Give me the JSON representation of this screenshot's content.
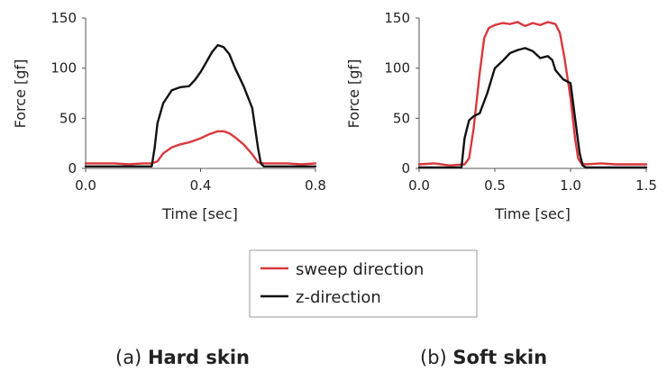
{
  "chart_data": [
    {
      "type": "line",
      "caption_prefix": "(a) ",
      "caption_bold": "Hard skin",
      "xlabel": "Time [sec]",
      "ylabel": "Force [gf]",
      "xlim": [
        0,
        0.8
      ],
      "ylim": [
        0,
        150
      ],
      "xticks": [
        0,
        0.4,
        0.8
      ],
      "yticks": [
        0,
        50,
        100,
        150
      ],
      "grid": false,
      "series": [
        {
          "name": "sweep direction",
          "color": "#d9383e",
          "x": [
            0,
            0.05,
            0.1,
            0.15,
            0.2,
            0.23,
            0.25,
            0.27,
            0.3,
            0.33,
            0.36,
            0.4,
            0.43,
            0.46,
            0.48,
            0.5,
            0.52,
            0.55,
            0.58,
            0.6,
            0.62,
            0.65,
            0.7,
            0.75,
            0.8
          ],
          "y": [
            5,
            5,
            5,
            4,
            5,
            5,
            7,
            15,
            21,
            24,
            26,
            30,
            34,
            37,
            37,
            35,
            31,
            24,
            14,
            6,
            5,
            5,
            5,
            4,
            5
          ]
        },
        {
          "name": "z-direction",
          "color": "#111111",
          "x": [
            0,
            0.05,
            0.1,
            0.15,
            0.2,
            0.23,
            0.24,
            0.25,
            0.27,
            0.3,
            0.33,
            0.36,
            0.38,
            0.4,
            0.42,
            0.44,
            0.46,
            0.48,
            0.5,
            0.52,
            0.55,
            0.58,
            0.6,
            0.61,
            0.62,
            0.65,
            0.7,
            0.75,
            0.8
          ],
          "y": [
            2,
            2,
            2,
            2,
            2,
            2,
            20,
            45,
            65,
            78,
            81,
            82,
            88,
            96,
            106,
            116,
            123,
            121,
            114,
            100,
            82,
            60,
            20,
            5,
            2,
            2,
            2,
            2,
            2
          ]
        }
      ]
    },
    {
      "type": "line",
      "caption_prefix": "(b) ",
      "caption_bold": "Soft skin",
      "xlabel": "Time [sec]",
      "ylabel": "Force [gf]",
      "xlim": [
        0,
        1.5
      ],
      "ylim": [
        0,
        150
      ],
      "xticks": [
        0,
        0.5,
        1.0,
        1.5
      ],
      "yticks": [
        0,
        50,
        100,
        150
      ],
      "grid": false,
      "series": [
        {
          "name": "sweep direction",
          "color": "#d9383e",
          "x": [
            0,
            0.1,
            0.2,
            0.3,
            0.33,
            0.36,
            0.4,
            0.43,
            0.46,
            0.5,
            0.55,
            0.6,
            0.65,
            0.7,
            0.75,
            0.8,
            0.85,
            0.9,
            0.93,
            0.96,
            1.0,
            1.03,
            1.05,
            1.07,
            1.1,
            1.2,
            1.3,
            1.4,
            1.5
          ],
          "y": [
            4,
            5,
            3,
            4,
            10,
            40,
            95,
            130,
            140,
            143,
            145,
            144,
            146,
            142,
            145,
            143,
            146,
            144,
            135,
            110,
            70,
            30,
            10,
            5,
            4,
            5,
            4,
            4,
            4
          ]
        },
        {
          "name": "z-direction",
          "color": "#111111",
          "x": [
            0,
            0.1,
            0.2,
            0.28,
            0.3,
            0.33,
            0.36,
            0.4,
            0.45,
            0.5,
            0.55,
            0.6,
            0.65,
            0.7,
            0.75,
            0.8,
            0.85,
            0.88,
            0.9,
            0.95,
            1.0,
            1.03,
            1.06,
            1.08,
            1.1,
            1.2,
            1.3,
            1.4,
            1.5
          ],
          "y": [
            1,
            1,
            1,
            1,
            30,
            48,
            52,
            55,
            75,
            100,
            107,
            115,
            118,
            120,
            117,
            110,
            112,
            108,
            98,
            89,
            85,
            50,
            15,
            3,
            1,
            1,
            1,
            1,
            1
          ]
        }
      ]
    }
  ],
  "legend": {
    "placement": "bottom-center",
    "items": [
      {
        "label": "sweep direction",
        "color": "#d9383e"
      },
      {
        "label": "z-direction",
        "color": "#111111"
      }
    ]
  }
}
